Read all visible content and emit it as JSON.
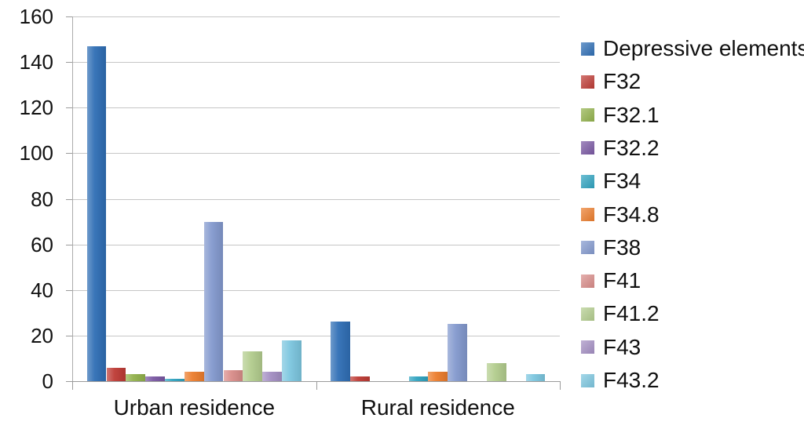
{
  "chart_data": {
    "type": "bar",
    "title": "",
    "categories": [
      "Urban residence",
      "Rural residence"
    ],
    "series": [
      {
        "name": "Depressive elements",
        "color": "#2F6EB5",
        "values": [
          147,
          26
        ]
      },
      {
        "name": "F32",
        "color": "#BE3B35",
        "values": [
          6,
          2
        ]
      },
      {
        "name": "F32.1",
        "color": "#92B24C",
        "values": [
          3,
          0
        ]
      },
      {
        "name": "F32.2",
        "color": "#7A58A3",
        "values": [
          2,
          0
        ]
      },
      {
        "name": "F34",
        "color": "#2FA3C0",
        "values": [
          1,
          2
        ]
      },
      {
        "name": "F34.8",
        "color": "#EC7D2D",
        "values": [
          4,
          4
        ]
      },
      {
        "name": "F38",
        "color": "#8399CE",
        "values": [
          70,
          25
        ]
      },
      {
        "name": "F41",
        "color": "#D98C89",
        "values": [
          5,
          0
        ]
      },
      {
        "name": "F41.2",
        "color": "#B3CD8E",
        "values": [
          13,
          8
        ]
      },
      {
        "name": "F43",
        "color": "#A48FC3",
        "values": [
          4,
          0
        ]
      },
      {
        "name": "F43.2",
        "color": "#7CC6DF",
        "values": [
          18,
          3
        ]
      }
    ],
    "ylim": [
      0,
      160
    ],
    "yticks": [
      0,
      20,
      40,
      60,
      80,
      100,
      120,
      140,
      160
    ],
    "grid": true,
    "legend_position": "right",
    "xlabel": "",
    "ylabel": "",
    "colors": {
      "gridline": "#C6C6C6",
      "axis": "#9B9B9B",
      "text": "#111111",
      "background": "#FFFFFF"
    }
  }
}
